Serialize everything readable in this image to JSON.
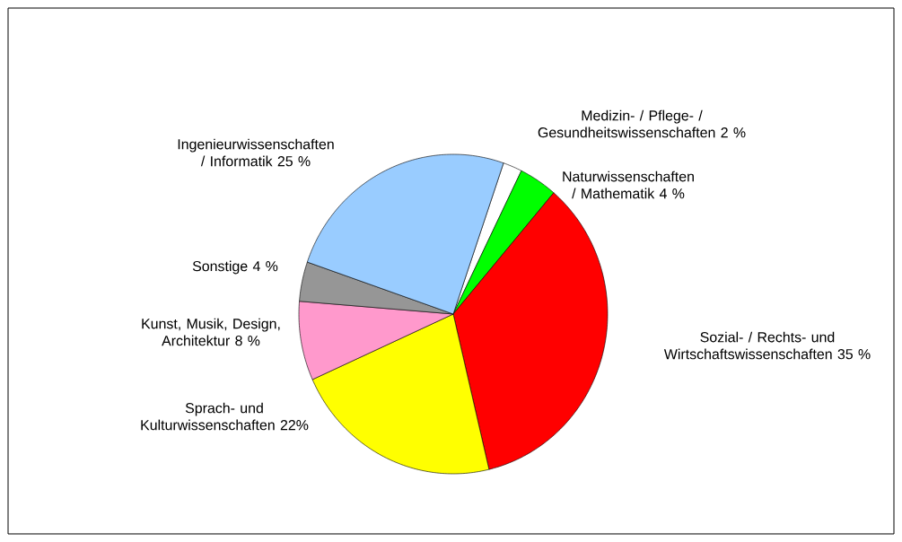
{
  "chart_data": {
    "type": "pie",
    "categories": [
      "Medizin- / Pflege- / Gesundheitswissenschaften",
      "Naturwissenschaften / Mathematik",
      "Sozial- / Rechts- und Wirtschaftswissenschaften",
      "Sprach- und Kulturwissenschaften",
      "Kunst, Musik, Design, Architektur",
      "Sonstige",
      "Ingenieurwissenschaften / Informatik"
    ],
    "values": [
      2,
      4,
      35,
      22,
      8,
      4,
      25
    ],
    "value_labels": [
      "2 %",
      "4 %",
      "35 %",
      "22%",
      "8 %",
      "4 %",
      "25 %"
    ],
    "colors": [
      "#ffffff",
      "#00ff00",
      "#ff0000",
      "#ffff00",
      "#ff99cc",
      "#969696",
      "#99ccff"
    ]
  }
}
